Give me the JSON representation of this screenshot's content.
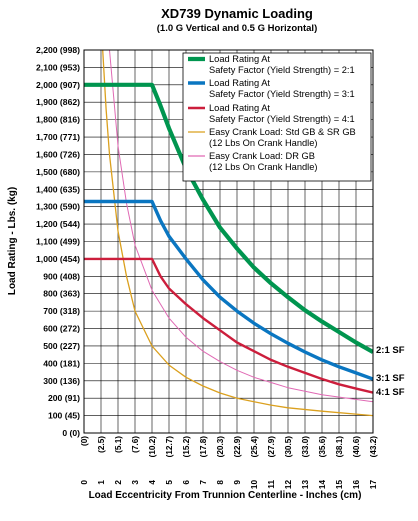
{
  "chart_data": {
    "type": "line",
    "title": "XD739 Dynamic Loading",
    "subtitle": "(1.0 G Vertical and 0.5 G Horizontal)",
    "xlabel": "Load Eccentricity From Trunnion Centerline - Inches (cm)",
    "ylabel": "Load Rating - Lbs. (kg)",
    "xlim": [
      0,
      17
    ],
    "ylim": [
      0,
      2200
    ],
    "grid": true,
    "legend_placement": "top-right",
    "x_ticks": [
      {
        "v": 0,
        "in": "0",
        "cm": "(0)"
      },
      {
        "v": 1,
        "in": "1",
        "cm": "(2.5)"
      },
      {
        "v": 2,
        "in": "2",
        "cm": "(5.1)"
      },
      {
        "v": 3,
        "in": "3",
        "cm": "(7.6)"
      },
      {
        "v": 4,
        "in": "4",
        "cm": "(10.2)"
      },
      {
        "v": 5,
        "in": "5",
        "cm": "(12.7)"
      },
      {
        "v": 6,
        "in": "6",
        "cm": "(15.2)"
      },
      {
        "v": 7,
        "in": "7",
        "cm": "(17.8)"
      },
      {
        "v": 8,
        "in": "8",
        "cm": "(20.3)"
      },
      {
        "v": 9,
        "in": "9",
        "cm": "(22.9)"
      },
      {
        "v": 10,
        "in": "10",
        "cm": "(25.4)"
      },
      {
        "v": 11,
        "in": "11",
        "cm": "(27.9)"
      },
      {
        "v": 12,
        "in": "12",
        "cm": "(30.5)"
      },
      {
        "v": 13,
        "in": "13",
        "cm": "(33.0)"
      },
      {
        "v": 14,
        "in": "14",
        "cm": "(35.6)"
      },
      {
        "v": 15,
        "in": "15",
        "cm": "(38.1)"
      },
      {
        "v": 16,
        "in": "16",
        "cm": "(40.6)"
      },
      {
        "v": 17,
        "in": "17",
        "cm": "(43.2)"
      }
    ],
    "y_ticks": [
      {
        "v": 2200,
        "label": "2,200 (998)"
      },
      {
        "v": 2100,
        "label": "2,100 (953)"
      },
      {
        "v": 2000,
        "label": "2,000 (907)"
      },
      {
        "v": 1900,
        "label": "1,900 (862)"
      },
      {
        "v": 1800,
        "label": "1,800 (816)"
      },
      {
        "v": 1700,
        "label": "1,700 (771)"
      },
      {
        "v": 1600,
        "label": "1,600 (726)"
      },
      {
        "v": 1500,
        "label": "1,500 (680)"
      },
      {
        "v": 1400,
        "label": "1,400 (635)"
      },
      {
        "v": 1300,
        "label": "1,300 (590)"
      },
      {
        "v": 1200,
        "label": "1,200 (544)"
      },
      {
        "v": 1100,
        "label": "1,100 (499)"
      },
      {
        "v": 1000,
        "label": "1,000 (454)"
      },
      {
        "v": 900,
        "label": "900 (408)"
      },
      {
        "v": 800,
        "label": "800 (363)"
      },
      {
        "v": 700,
        "label": "700 (318)"
      },
      {
        "v": 600,
        "label": "600 (272)"
      },
      {
        "v": 500,
        "label": "500 (227)"
      },
      {
        "v": 400,
        "label": "400 (181)"
      },
      {
        "v": 300,
        "label": "300 (136)"
      },
      {
        "v": 200,
        "label": "200 (91)"
      },
      {
        "v": 100,
        "label": "100 (45)"
      },
      {
        "v": 0,
        "label": "0 (0)"
      }
    ],
    "series": [
      {
        "name": "Load Rating At Safety Factor (Yield Strength) = 2:1",
        "legend_lines": [
          "Load Rating At",
          "Safety Factor (Yield Strength) = 2:1"
        ],
        "end_label": "2:1 SF",
        "color": "#00954f",
        "width": 4.2,
        "points": [
          [
            0,
            2000
          ],
          [
            4,
            2000
          ],
          [
            4.5,
            1880
          ],
          [
            5,
            1750
          ],
          [
            6,
            1520
          ],
          [
            7,
            1340
          ],
          [
            8,
            1180
          ],
          [
            9,
            1060
          ],
          [
            10,
            950
          ],
          [
            11,
            860
          ],
          [
            12,
            780
          ],
          [
            13,
            705
          ],
          [
            14,
            640
          ],
          [
            15,
            580
          ],
          [
            16,
            520
          ],
          [
            17,
            465
          ]
        ]
      },
      {
        "name": "Load Rating At Safety Factor (Yield Strength) = 3:1",
        "legend_lines": [
          "Load Rating At",
          "Safety Factor (Yield Strength) = 3:1"
        ],
        "end_label": "3:1 SF",
        "color": "#0a76c1",
        "width": 3.4,
        "points": [
          [
            0,
            1330
          ],
          [
            4,
            1330
          ],
          [
            4.5,
            1220
          ],
          [
            5,
            1130
          ],
          [
            6,
            1000
          ],
          [
            7,
            880
          ],
          [
            8,
            780
          ],
          [
            9,
            700
          ],
          [
            10,
            630
          ],
          [
            11,
            570
          ],
          [
            12,
            515
          ],
          [
            13,
            465
          ],
          [
            14,
            420
          ],
          [
            15,
            380
          ],
          [
            16,
            345
          ],
          [
            17,
            310
          ]
        ]
      },
      {
        "name": "Load Rating At Safety Factor (Yield Strength) = 4:1",
        "legend_lines": [
          "Load Rating At",
          "Safety Factor (Yield Strength) = 4:1"
        ],
        "end_label": "4:1 SF",
        "color": "#cc1e3c",
        "width": 2.4,
        "points": [
          [
            0,
            1000
          ],
          [
            4,
            1000
          ],
          [
            4.5,
            900
          ],
          [
            5,
            830
          ],
          [
            6,
            740
          ],
          [
            7,
            660
          ],
          [
            8,
            590
          ],
          [
            9,
            520
          ],
          [
            10,
            470
          ],
          [
            11,
            420
          ],
          [
            12,
            380
          ],
          [
            13,
            345
          ],
          [
            14,
            310
          ],
          [
            15,
            280
          ],
          [
            16,
            255
          ],
          [
            17,
            232
          ]
        ]
      },
      {
        "name": "Easy Crank Load: Std GB & SR GB (12 Lbs On Crank Handle)",
        "legend_lines": [
          "Easy Crank Load: Std GB & SR GB",
          "(12 Lbs On Crank Handle)"
        ],
        "end_label": "",
        "color": "#dba01e",
        "width": 1.3,
        "points": [
          [
            1.1,
            2200
          ],
          [
            1.3,
            1860
          ],
          [
            1.5,
            1600
          ],
          [
            2,
            1160
          ],
          [
            2.5,
            900
          ],
          [
            3,
            700
          ],
          [
            4,
            500
          ],
          [
            5,
            390
          ],
          [
            6,
            320
          ],
          [
            7,
            270
          ],
          [
            8,
            230
          ],
          [
            9,
            200
          ],
          [
            10,
            180
          ],
          [
            11,
            160
          ],
          [
            12,
            145
          ],
          [
            14,
            125
          ],
          [
            17,
            100
          ]
        ]
      },
      {
        "name": "Easy Crank Load: DR GB (12 Lbs On Crank Handle)",
        "legend_lines": [
          "Easy Crank Load: DR GB",
          "(12 Lbs On Crank Handle)"
        ],
        "end_label": "",
        "color": "#e069b4",
        "width": 1.0,
        "points": [
          [
            1.5,
            2200
          ],
          [
            2,
            1650
          ],
          [
            2.5,
            1320
          ],
          [
            3,
            1080
          ],
          [
            4,
            820
          ],
          [
            5,
            660
          ],
          [
            6,
            550
          ],
          [
            7,
            470
          ],
          [
            8,
            410
          ],
          [
            9,
            360
          ],
          [
            10,
            320
          ],
          [
            11,
            290
          ],
          [
            12,
            260
          ],
          [
            14,
            220
          ],
          [
            17,
            180
          ]
        ]
      }
    ]
  }
}
